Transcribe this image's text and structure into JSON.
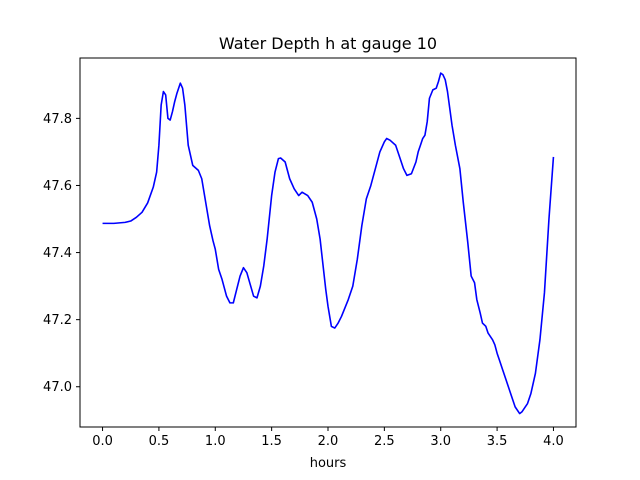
{
  "chart_data": {
    "type": "line",
    "title": "Water Depth h at gauge 10",
    "xlabel": "hours",
    "ylabel": "",
    "xlim": [
      -0.2,
      4.2
    ],
    "ylim": [
      46.88,
      47.98
    ],
    "xticks": [
      0.0,
      0.5,
      1.0,
      1.5,
      2.0,
      2.5,
      3.0,
      3.5,
      4.0
    ],
    "xtick_labels": [
      "0.0",
      "0.5",
      "1.0",
      "1.5",
      "2.0",
      "2.5",
      "3.0",
      "3.5",
      "4.0"
    ],
    "yticks": [
      47.0,
      47.2,
      47.4,
      47.6,
      47.8
    ],
    "ytick_labels": [
      "47.0",
      "47.2",
      "47.4",
      "47.6",
      "47.8"
    ],
    "grid": false,
    "legend": "none",
    "series": [
      {
        "name": "",
        "color": "#0000ff",
        "x": [
          0.0,
          0.1,
          0.2,
          0.25,
          0.3,
          0.35,
          0.4,
          0.45,
          0.48,
          0.5,
          0.52,
          0.54,
          0.56,
          0.58,
          0.6,
          0.62,
          0.64,
          0.66,
          0.69,
          0.71,
          0.73,
          0.76,
          0.8,
          0.85,
          0.88,
          0.92,
          0.95,
          0.98,
          1.0,
          1.03,
          1.06,
          1.1,
          1.13,
          1.16,
          1.19,
          1.22,
          1.25,
          1.28,
          1.31,
          1.34,
          1.37,
          1.4,
          1.43,
          1.46,
          1.5,
          1.53,
          1.56,
          1.58,
          1.62,
          1.66,
          1.7,
          1.74,
          1.77,
          1.82,
          1.86,
          1.9,
          1.93,
          1.96,
          1.98,
          2.0,
          2.03,
          2.06,
          2.09,
          2.12,
          2.18,
          2.22,
          2.26,
          2.3,
          2.34,
          2.38,
          2.42,
          2.46,
          2.5,
          2.52,
          2.55,
          2.6,
          2.63,
          2.67,
          2.7,
          2.74,
          2.78,
          2.8,
          2.82,
          2.84,
          2.86,
          2.88,
          2.9,
          2.93,
          2.96,
          2.98,
          3.0,
          3.02,
          3.04,
          3.06,
          3.08,
          3.1,
          3.13,
          3.17,
          3.2,
          3.24,
          3.27,
          3.3,
          3.32,
          3.35,
          3.37,
          3.4,
          3.42,
          3.44,
          3.46,
          3.48,
          3.5,
          3.52,
          3.55,
          3.58,
          3.62,
          3.66,
          3.7,
          3.72,
          3.74,
          3.77,
          3.8,
          3.84,
          3.88,
          3.92,
          3.96,
          4.0
        ],
        "y": [
          47.487,
          47.487,
          47.49,
          47.494,
          47.505,
          47.52,
          47.548,
          47.595,
          47.64,
          47.72,
          47.84,
          47.88,
          47.87,
          47.8,
          47.795,
          47.82,
          47.85,
          47.875,
          47.905,
          47.89,
          47.84,
          47.72,
          47.66,
          47.645,
          47.62,
          47.54,
          47.48,
          47.435,
          47.41,
          47.35,
          47.32,
          47.27,
          47.25,
          47.25,
          47.29,
          47.33,
          47.355,
          47.34,
          47.305,
          47.27,
          47.265,
          47.3,
          47.36,
          47.44,
          47.57,
          47.64,
          47.68,
          47.682,
          47.67,
          47.62,
          47.59,
          47.57,
          47.58,
          47.57,
          47.55,
          47.5,
          47.44,
          47.35,
          47.29,
          47.24,
          47.18,
          47.175,
          47.19,
          47.21,
          47.26,
          47.3,
          47.38,
          47.48,
          47.56,
          47.6,
          47.65,
          47.7,
          47.73,
          47.74,
          47.735,
          47.72,
          47.69,
          47.65,
          47.63,
          47.635,
          47.67,
          47.7,
          47.72,
          47.74,
          47.75,
          47.79,
          47.86,
          47.885,
          47.89,
          47.91,
          47.935,
          47.93,
          47.915,
          47.88,
          47.83,
          47.78,
          47.72,
          47.65,
          47.55,
          47.43,
          47.33,
          47.31,
          47.26,
          47.22,
          47.19,
          47.18,
          47.16,
          47.15,
          47.14,
          47.125,
          47.1,
          47.08,
          47.05,
          47.02,
          46.98,
          46.94,
          46.92,
          46.925,
          46.935,
          46.95,
          46.98,
          47.04,
          47.14,
          47.28,
          47.5,
          47.685
        ]
      }
    ]
  }
}
